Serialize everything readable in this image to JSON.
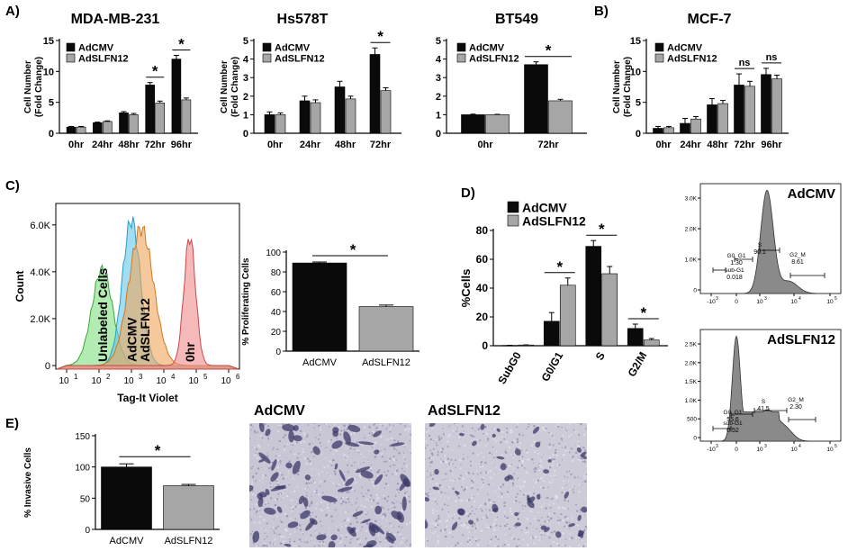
{
  "panels": {
    "a": "A)",
    "b": "B)",
    "c": "C)",
    "d": "D)",
    "e": "E)"
  },
  "legend": {
    "ctrl": "AdCMV",
    "trt": "AdSLFN12"
  },
  "colors": {
    "ctrl": "#0a0a0a",
    "trt": "#a6a6a6",
    "unlabeled": "#7fe07f",
    "adcmv_hist": "#63c8e8",
    "adslfn_hist": "#f0a55a",
    "zero_hist": "#f08a8a",
    "flow_fill": "#8a8a8a"
  },
  "chart_data": [
    {
      "id": "mda",
      "type": "bar",
      "title": "MDA-MB-231",
      "ylabel": [
        "Cell Number",
        "(Fold Change)"
      ],
      "ylim": [
        0,
        15
      ],
      "yticks": [
        0,
        5,
        10,
        15
      ],
      "categories": [
        "0hr",
        "24hr",
        "48hr",
        "72hr",
        "96hr"
      ],
      "series": [
        {
          "name": "AdCMV",
          "values": [
            1,
            1.7,
            3.3,
            7.8,
            12.0
          ],
          "err": [
            0.1,
            0.1,
            0.2,
            0.4,
            0.6
          ]
        },
        {
          "name": "AdSLFN12",
          "values": [
            1,
            1.9,
            3.0,
            4.9,
            5.4
          ],
          "err": [
            0.1,
            0.1,
            0.2,
            0.3,
            0.3
          ]
        }
      ],
      "sig": [
        {
          "index": 3,
          "label": "*"
        },
        {
          "index": 4,
          "label": "*"
        }
      ]
    },
    {
      "id": "hs",
      "type": "bar",
      "title": "Hs578T",
      "ylabel": [
        "Cell Number",
        "(Fold Change)"
      ],
      "ylim": [
        0,
        5
      ],
      "yticks": [
        0,
        1,
        2,
        3,
        4,
        5
      ],
      "categories": [
        "0hr",
        "24hr",
        "48hr",
        "72hr"
      ],
      "series": [
        {
          "name": "AdCMV",
          "values": [
            1.0,
            1.75,
            2.5,
            4.25
          ],
          "err": [
            0.15,
            0.25,
            0.3,
            0.35
          ]
        },
        {
          "name": "AdSLFN12",
          "values": [
            1.0,
            1.65,
            1.85,
            2.3
          ],
          "err": [
            0.1,
            0.15,
            0.15,
            0.15
          ]
        }
      ],
      "sig": [
        {
          "index": 3,
          "label": "*"
        }
      ]
    },
    {
      "id": "bt",
      "type": "bar",
      "title": "BT549",
      "ylabel": [],
      "ylim": [
        0,
        5
      ],
      "yticks": [
        0,
        1,
        2,
        3,
        4,
        5
      ],
      "categories": [
        "0hr",
        "72hr"
      ],
      "series": [
        {
          "name": "AdCMV",
          "values": [
            1.0,
            3.7
          ],
          "err": [
            0.03,
            0.15
          ]
        },
        {
          "name": "AdSLFN12",
          "values": [
            1.0,
            1.75
          ],
          "err": [
            0.02,
            0.08
          ]
        }
      ],
      "sig": [
        {
          "index": 1,
          "label": "*"
        }
      ]
    },
    {
      "id": "mcf",
      "type": "bar",
      "title": "MCF-7",
      "ylabel": [
        "Cell Number",
        "(Fold Change)"
      ],
      "ylim": [
        0,
        15
      ],
      "yticks": [
        0,
        5,
        10,
        15
      ],
      "categories": [
        "0hr",
        "24hr",
        "48hr",
        "72hr",
        "96hr"
      ],
      "series": [
        {
          "name": "AdCMV",
          "values": [
            0.8,
            1.6,
            4.6,
            7.8,
            9.5
          ],
          "err": [
            0.3,
            0.8,
            1.0,
            1.8,
            1.0
          ]
        },
        {
          "name": "AdSLFN12",
          "values": [
            0.9,
            2.3,
            4.8,
            7.6,
            8.8
          ],
          "err": [
            0.2,
            0.4,
            0.5,
            0.8,
            0.6
          ]
        }
      ],
      "sig": [
        {
          "index": 3,
          "label": "ns"
        },
        {
          "index": 4,
          "label": "ns"
        }
      ]
    },
    {
      "id": "hist",
      "type": "area",
      "xlabel": "Tag-It Violet",
      "ylabel": "Count",
      "yticks": [
        "0",
        "2.0K",
        "4.0K",
        "6.0K"
      ],
      "xticks": [
        "10",
        "10",
        "10",
        "10",
        "10",
        "10"
      ],
      "xexp": [
        "1",
        "2",
        "3",
        "4",
        "5",
        "6"
      ],
      "series": [
        {
          "name": "Unlabeled Cells",
          "peak_log": 2.1,
          "peak": 4.1
        },
        {
          "name": "AdCMV",
          "peak_log": 3.0,
          "peak": 6.2
        },
        {
          "name": "AdSLFN12",
          "peak_log": 3.3,
          "peak": 5.85
        },
        {
          "name": "0hr",
          "peak_log": 4.8,
          "peak": 5.5
        }
      ]
    },
    {
      "id": "prolif",
      "type": "bar",
      "ylabel": "% Proliferating Cells",
      "ylim": [
        0,
        100
      ],
      "yticks": [
        0,
        20,
        40,
        60,
        80,
        100
      ],
      "categories": [
        "AdCMV",
        "AdSLFN12"
      ],
      "values": [
        89,
        45
      ],
      "err": [
        1,
        1.5
      ],
      "sig": "*"
    },
    {
      "id": "cycle",
      "type": "bar",
      "ylabel": "%Cells",
      "ylim": [
        0,
        80
      ],
      "yticks": [
        0,
        20,
        40,
        60,
        80
      ],
      "categories": [
        "SubG0",
        "G0/G1",
        "S",
        "G2/M"
      ],
      "series": [
        {
          "name": "AdCMV",
          "values": [
            0.2,
            17,
            69,
            12
          ],
          "err": [
            0.1,
            6,
            4,
            3
          ]
        },
        {
          "name": "AdSLFN12",
          "values": [
            0.5,
            42,
            50,
            4
          ],
          "err": [
            0.1,
            5,
            5,
            1
          ]
        }
      ],
      "sig": [
        {
          "index": 1,
          "label": "*"
        },
        {
          "index": 2,
          "label": "*"
        },
        {
          "index": 3,
          "label": "*"
        }
      ]
    },
    {
      "id": "invasion",
      "type": "bar",
      "ylabel": "% Invasive Cells",
      "ylim": [
        0,
        150
      ],
      "yticks": [
        0,
        50,
        100,
        150
      ],
      "categories": [
        "AdCMV",
        "AdSLFN12"
      ],
      "values": [
        100,
        70
      ],
      "err": [
        5,
        2
      ],
      "sig": "*"
    }
  ],
  "flow": [
    {
      "title": "AdCMV",
      "yticks": [
        "3.0K",
        "2.0K",
        "1.0K",
        "0"
      ],
      "xticks": [
        "-10",
        "0",
        "10",
        "10",
        "10"
      ],
      "xexp": [
        "3",
        "",
        "3",
        "4",
        "5"
      ],
      "gates": [
        {
          "label": "sub-G1",
          "value": "0.018"
        },
        {
          "label": "G0_G1",
          "value": "1.30"
        },
        {
          "label": "S",
          "value": "90.1"
        },
        {
          "label": "G2_M",
          "value": "8.61"
        }
      ]
    },
    {
      "title": "AdSLFN12",
      "yticks": [
        "2.5K",
        "2.0K",
        "1.5K",
        "1.0K",
        "500",
        "0"
      ],
      "xticks": [
        "-10",
        "0",
        "10",
        "10",
        "10"
      ],
      "xexp": [
        "3",
        "",
        "3",
        "4",
        "5"
      ],
      "gates": [
        {
          "label": "sub-G1",
          "value": "0.52"
        },
        {
          "label": "G0_G1",
          "value": "55.6"
        },
        {
          "label": "S",
          "value": "41.5"
        },
        {
          "label": "G2_M",
          "value": "2.30"
        }
      ]
    }
  ],
  "micrographs": {
    "left_title": "AdCMV",
    "right_title": "AdSLFN12"
  }
}
